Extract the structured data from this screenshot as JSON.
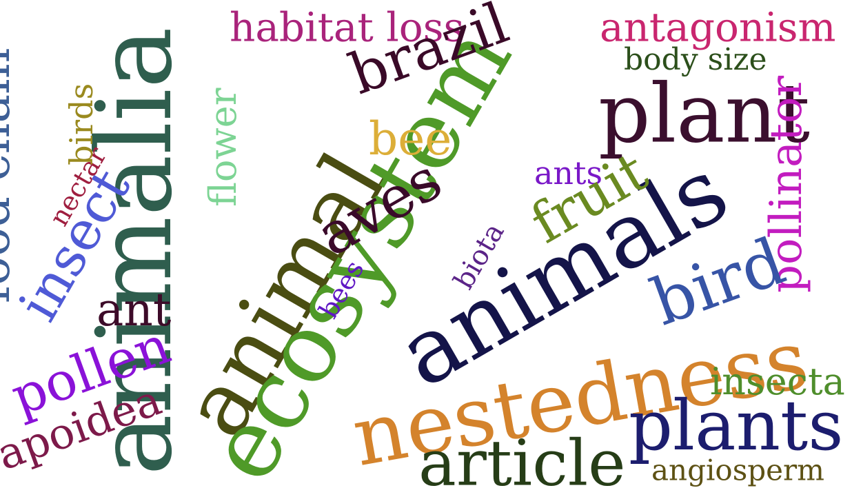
{
  "words": {
    "animalia": "animalia",
    "animal": "animal",
    "ecosystem": "ecosystem",
    "animals": "animals",
    "nestedness": "nestedness",
    "plant": "plant",
    "plants": "plants",
    "brazil": "brazil",
    "habitat_loss": "habitat loss",
    "antagonism": "antagonism",
    "body_size": "body size",
    "pollinator": "pollinator",
    "bird": "bird",
    "fruit": "fruit",
    "bee": "bee",
    "ants": "ants",
    "aves": "aves",
    "biota": "biota",
    "bees": "bees",
    "article": "article",
    "insecta": "insecta",
    "angiosperm": "angiosperm",
    "flower": "flower",
    "food_chain": "food chain",
    "insect": "insect",
    "nectar": "nectar",
    "birds": "birds",
    "ant": "ant",
    "pollen": "pollen",
    "apoidea": "apoidea"
  },
  "colors": {
    "animalia": "#2f5e4e",
    "animal": "#4a4d12",
    "ecosystem": "#4f9a28",
    "animals": "#141449",
    "nestedness": "#d4832c",
    "plant": "#3b0f2e",
    "plants": "#1c1d6e",
    "brazil": "#3a0a28",
    "habitat_loss": "#a9237b",
    "antagonism": "#c9266f",
    "body_size": "#2c4f1b",
    "pollinator": "#c21cbf",
    "bird": "#3754a6",
    "fruit": "#6a8a21",
    "bee": "#dcae38",
    "ants": "#7a18c8",
    "aves": "#3a0a2a",
    "biota": "#5b2488",
    "bees": "#5f17c4",
    "article": "#263d17",
    "insecta": "#4f8e2c",
    "angiosperm": "#5d5114",
    "flower": "#7dd494",
    "food_chain": "#3d5f96",
    "insect": "#4f5ad6",
    "nectar": "#9f1e3f",
    "birds": "#9a8a1f",
    "ant": "#3d0b29",
    "pollen": "#8a12d8",
    "apoidea": "#7d1a4a"
  }
}
